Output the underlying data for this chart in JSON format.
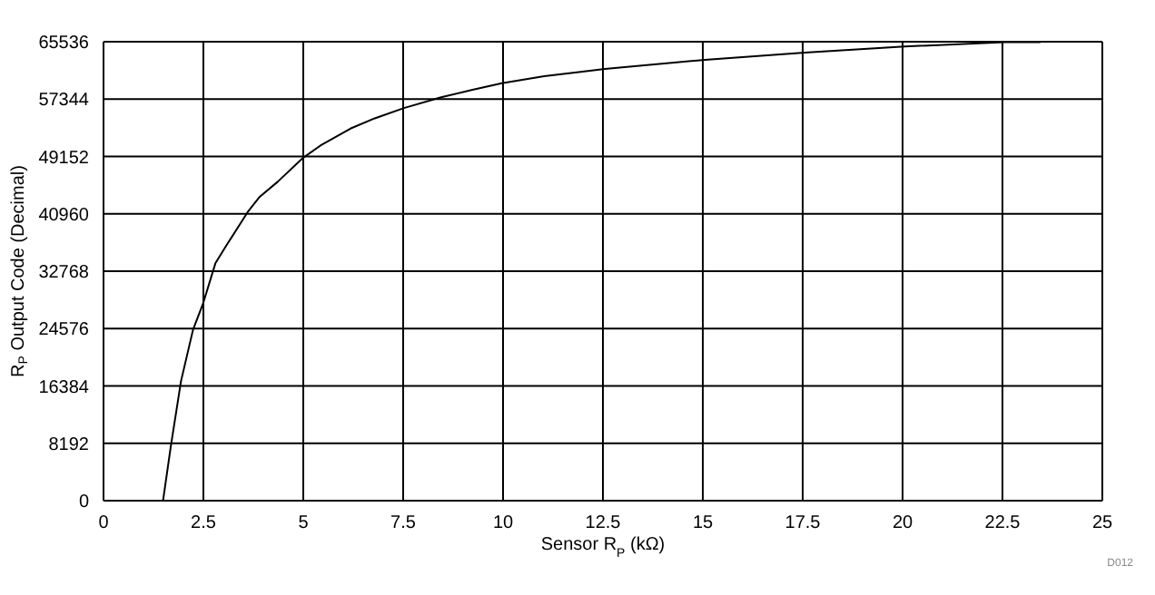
{
  "chart_data": {
    "type": "line",
    "xlabel": "Sensor R$_{P}$ (kΩ)",
    "ylabel": "R$_{P}$ Output Code (Decimal)",
    "annotations": [
      "D012"
    ],
    "xlim": [
      0,
      25
    ],
    "xticks": [
      0,
      2.5,
      5,
      7.5,
      10,
      12.5,
      15,
      17.5,
      20,
      22.5,
      25
    ],
    "ylim": [
      0,
      65536
    ],
    "yticks": [
      0,
      8192,
      16384,
      24576,
      32768,
      40960,
      49152,
      57344,
      65536
    ],
    "grid": true,
    "marker": "none",
    "line_style": "solid",
    "series": [
      {
        "color": "#000000",
        "x": [
          1.49,
          1.68,
          1.94,
          2.24,
          2.5,
          2.8,
          3.08,
          3.61,
          3.91,
          4.36,
          5.0,
          5.43,
          6.18,
          6.79,
          7.52,
          8.45,
          9.21,
          9.97,
          11.03,
          11.94,
          12.55,
          15.05,
          17.55,
          20.05,
          22.55,
          23.45
        ],
        "values": [
          0,
          7580,
          17080,
          24400,
          28290,
          33890,
          36480,
          41220,
          43390,
          45540,
          48980,
          50710,
          53130,
          54600,
          56060,
          57610,
          58640,
          59600,
          60620,
          61230,
          61660,
          62950,
          63980,
          64860,
          65460,
          65460
        ]
      }
    ]
  }
}
